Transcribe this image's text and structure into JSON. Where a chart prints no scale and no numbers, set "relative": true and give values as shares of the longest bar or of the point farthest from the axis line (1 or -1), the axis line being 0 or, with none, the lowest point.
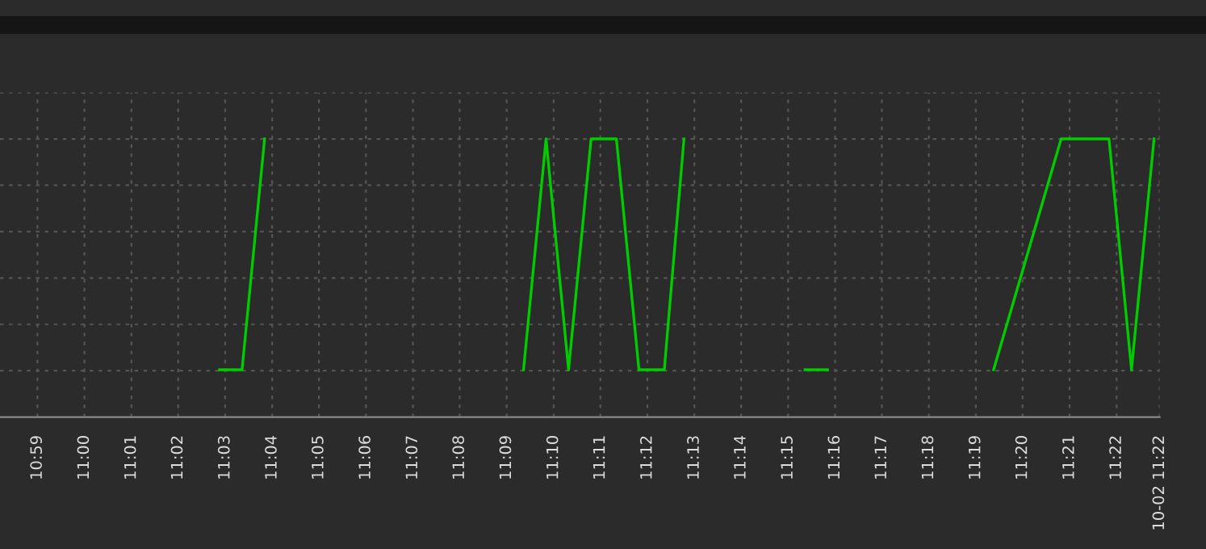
{
  "chart_data": {
    "type": "line",
    "relative": true,
    "x": [
      11.048,
      11.056,
      11.064,
      11.11,
      11.156,
      11.164,
      11.172,
      11.18,
      11.189,
      11.197,
      11.206,
      11.213,
      11.23,
      11.256,
      11.264,
      11.29,
      11.323,
      11.347,
      11.364,
      11.372,
      11.38
    ],
    "series": [
      {
        "color": "#00cc00",
        "values": [
          0.17,
          0.17,
          1,
          null,
          0.17,
          1,
          0.17,
          1,
          1,
          0.17,
          0.17,
          1,
          null,
          0.17,
          0.17,
          null,
          0.17,
          1,
          1,
          0.17,
          1
        ]
      }
    ],
    "xlim": [
      10.97,
      11.382
    ],
    "xticks": [
      {
        "value": 10.9833,
        "label": "10:59"
      },
      {
        "value": 11.0,
        "label": "11:00"
      },
      {
        "value": 11.0167,
        "label": "11:01"
      },
      {
        "value": 11.0333,
        "label": "11:02"
      },
      {
        "value": 11.05,
        "label": "11:03"
      },
      {
        "value": 11.0667,
        "label": "11:04"
      },
      {
        "value": 11.0833,
        "label": "11:05"
      },
      {
        "value": 11.1,
        "label": "11:06"
      },
      {
        "value": 11.1167,
        "label": "11:07"
      },
      {
        "value": 11.1333,
        "label": "11:08"
      },
      {
        "value": 11.15,
        "label": "11:09"
      },
      {
        "value": 11.1667,
        "label": "11:10"
      },
      {
        "value": 11.1833,
        "label": "11:11"
      },
      {
        "value": 11.2,
        "label": "11:12"
      },
      {
        "value": 11.2167,
        "label": "11:13"
      },
      {
        "value": 11.2333,
        "label": "11:14"
      },
      {
        "value": 11.25,
        "label": "11:15"
      },
      {
        "value": 11.2667,
        "label": "11:16"
      },
      {
        "value": 11.2833,
        "label": "11:17"
      },
      {
        "value": 11.3,
        "label": "11:18"
      },
      {
        "value": 11.3167,
        "label": "11:19"
      },
      {
        "value": 11.3333,
        "label": "11:20"
      },
      {
        "value": 11.35,
        "label": "11:21"
      },
      {
        "value": 11.3667,
        "label": "11:22"
      },
      {
        "value": 11.382,
        "label": "10-02 11:22"
      }
    ],
    "grid": true,
    "line_style": "solid",
    "marker": "none"
  }
}
